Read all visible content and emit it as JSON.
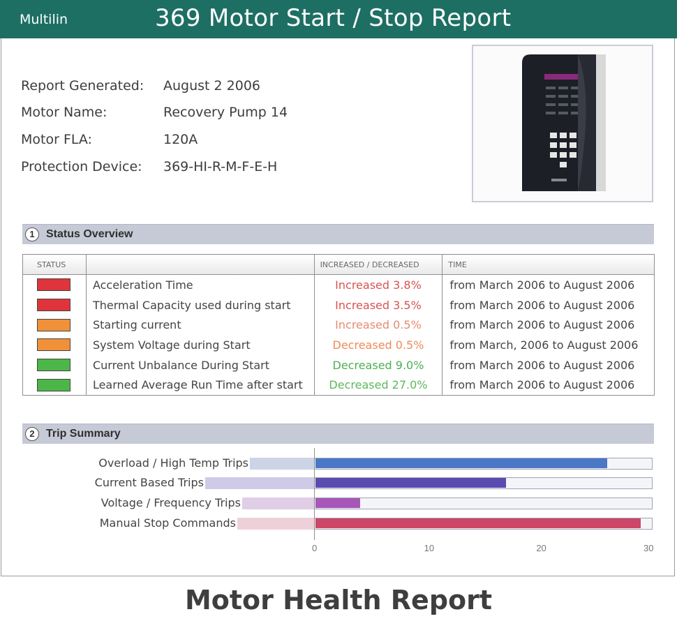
{
  "header": {
    "brand": "Multilin",
    "title": "369 Motor Start / Stop Report"
  },
  "report_info": [
    {
      "label": "Report Generated:",
      "value": "August 2 2006"
    },
    {
      "label": "Motor Name:",
      "value": "Recovery Pump 14"
    },
    {
      "label": "Motor FLA:",
      "value": "120A"
    },
    {
      "label": "Protection Device:",
      "value": "369-HI-R-M-F-E-H"
    }
  ],
  "status_overview": {
    "number": "1",
    "title": "Status Overview",
    "columns": [
      "STATUS",
      "",
      "INCREASED / DECREASED",
      "TIME"
    ],
    "rows": [
      {
        "status_color": "#e0343c",
        "description": "Acceleration Time",
        "change": "Increased 3.8%",
        "change_color": "#d9534f",
        "time": "from March 2006 to August 2006"
      },
      {
        "status_color": "#e0343c",
        "description": "Thermal Capacity used during start",
        "change": "Increased 3.5%",
        "change_color": "#d9534f",
        "time": "from March 2006 to August 2006"
      },
      {
        "status_color": "#f0913a",
        "description": "Starting current",
        "change": "Increased 0.5%",
        "change_color": "#e88a70",
        "time": "from March 2006 to August 2006"
      },
      {
        "status_color": "#f0913a",
        "description": "System Voltage during Start",
        "change": "Decreased 0.5%",
        "change_color": "#ef8a55",
        "time": "from March, 2006 to August 2006"
      },
      {
        "status_color": "#4cb748",
        "description": "Current Unbalance During Start",
        "change": "Decreased 9.0%",
        "change_color": "#4caf50",
        "time": "from March 2006 to August 2006"
      },
      {
        "status_color": "#4cb748",
        "description": "Learned Average Run Time after start",
        "change": "Decreased 27.0%",
        "change_color": "#5cb85c",
        "time": "from March 2006 to August 2006"
      }
    ]
  },
  "trip_summary": {
    "number": "2",
    "title": "Trip Summary"
  },
  "chart_data": {
    "type": "bar",
    "orientation": "horizontal",
    "categories": [
      "Overload / High Temp Trips",
      "Current Based Trips",
      "Voltage / Frequency Trips",
      "Manual Stop Commands"
    ],
    "values": [
      26,
      17,
      4,
      29
    ],
    "colors": [
      "#4a78c6",
      "#5a4bb0",
      "#a657b8",
      "#cc4668"
    ],
    "xlim": [
      0,
      30
    ],
    "xticks": [
      0,
      10,
      20,
      30
    ]
  },
  "footer": {
    "caption": "Motor Health Report"
  }
}
